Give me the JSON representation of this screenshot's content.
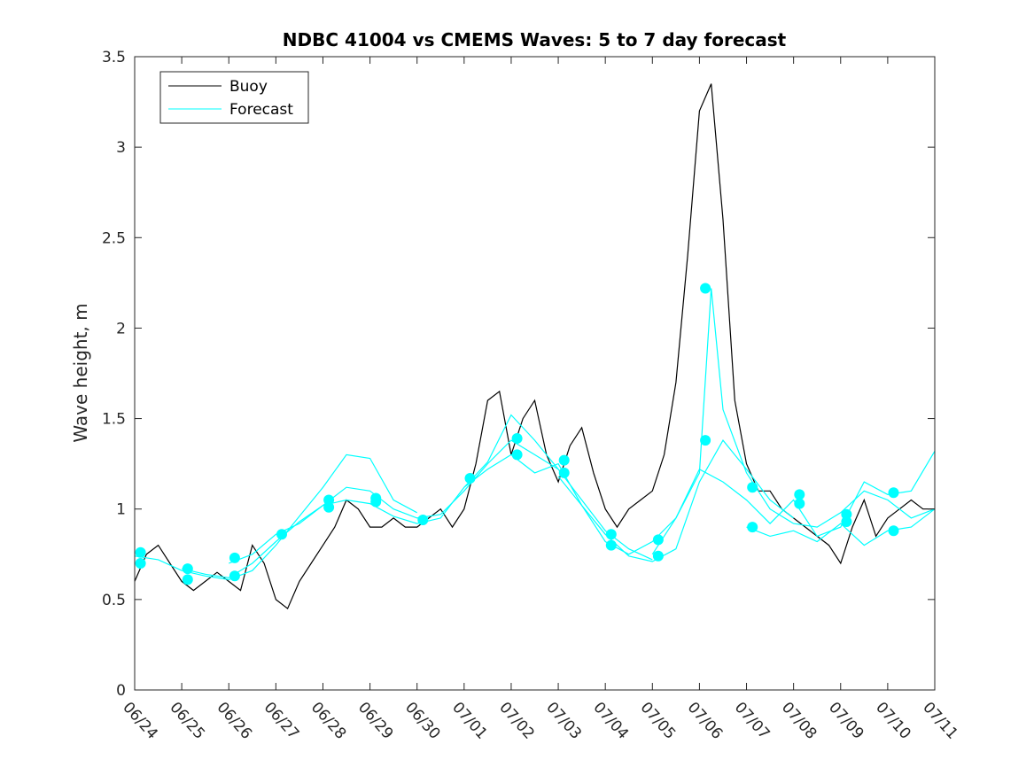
{
  "chart_data": {
    "type": "line",
    "title": "NDBC 41004 vs CMEMS Waves: 5 to 7 day forecast",
    "xlabel": "",
    "ylabel": "Wave height, m",
    "xlim": [
      "06/24",
      "07/11"
    ],
    "ylim": [
      0,
      3.5
    ],
    "x_ticks": [
      "06/24",
      "06/25",
      "06/26",
      "06/27",
      "06/28",
      "06/29",
      "06/30",
      "07/01",
      "07/02",
      "07/03",
      "07/04",
      "07/05",
      "07/06",
      "07/07",
      "07/08",
      "07/09",
      "07/10",
      "07/11"
    ],
    "y_ticks": [
      "0",
      "0.5",
      "1",
      "1.5",
      "2",
      "2.5",
      "3",
      "3.5"
    ],
    "grid": false,
    "legend_position": "top-left",
    "colors": {
      "buoy": "#000000",
      "forecast": "#00ffff"
    },
    "series": [
      {
        "name": "Buoy",
        "x": [
          "06/24 00:00",
          "06/24 06:00",
          "06/24 12:00",
          "06/24 18:00",
          "06/25 00:00",
          "06/25 06:00",
          "06/25 12:00",
          "06/25 18:00",
          "06/26 00:00",
          "06/26 06:00",
          "06/26 12:00",
          "06/26 18:00",
          "06/27 00:00",
          "06/27 06:00",
          "06/27 12:00",
          "06/27 18:00",
          "06/28 00:00",
          "06/28 06:00",
          "06/28 12:00",
          "06/28 18:00",
          "06/29 00:00",
          "06/29 06:00",
          "06/29 12:00",
          "06/29 18:00",
          "06/30 00:00",
          "06/30 06:00",
          "06/30 12:00",
          "06/30 18:00",
          "07/01 00:00",
          "07/01 06:00",
          "07/01 12:00",
          "07/01 18:00",
          "07/02 00:00",
          "07/02 06:00",
          "07/02 12:00",
          "07/02 18:00",
          "07/03 00:00",
          "07/03 06:00",
          "07/03 12:00",
          "07/03 18:00",
          "07/04 00:00",
          "07/04 06:00",
          "07/04 12:00",
          "07/04 18:00",
          "07/05 00:00",
          "07/05 06:00",
          "07/05 12:00",
          "07/05 18:00",
          "07/06 00:00",
          "07/06 06:00",
          "07/06 12:00",
          "07/06 18:00",
          "07/07 00:00",
          "07/07 06:00",
          "07/07 12:00",
          "07/07 18:00",
          "07/08 00:00",
          "07/08 06:00",
          "07/08 12:00",
          "07/08 18:00",
          "07/09 00:00",
          "07/09 06:00",
          "07/09 12:00",
          "07/09 18:00",
          "07/10 00:00",
          "07/10 06:00",
          "07/10 12:00",
          "07/10 18:00",
          "07/11 00:00"
        ],
        "y": [
          0.6,
          0.75,
          0.8,
          0.7,
          0.6,
          0.55,
          0.6,
          0.65,
          0.6,
          0.55,
          0.8,
          0.7,
          0.5,
          0.45,
          0.6,
          0.7,
          0.8,
          0.9,
          1.05,
          1.0,
          0.9,
          0.9,
          0.95,
          0.9,
          0.9,
          0.95,
          1.0,
          0.9,
          1.0,
          1.25,
          1.6,
          1.65,
          1.3,
          1.5,
          1.6,
          1.3,
          1.15,
          1.35,
          1.45,
          1.2,
          1.0,
          0.9,
          1.0,
          1.05,
          1.1,
          1.3,
          1.7,
          2.4,
          3.2,
          3.35,
          2.6,
          1.6,
          1.25,
          1.1,
          1.1,
          1.0,
          0.95,
          0.9,
          0.85,
          0.8,
          0.7,
          0.9,
          1.05,
          0.85,
          0.95,
          1.0,
          1.05,
          1.0,
          1.0
        ]
      },
      {
        "name": "Forecast",
        "x": [
          "06/24 00:00",
          "06/24 12:00",
          "06/25 00:00",
          "06/25 12:00",
          "06/26 00:00",
          "06/26 12:00",
          "06/27 00:00",
          "06/27 12:00",
          "06/28 00:00",
          "06/28 12:00",
          "06/29 00:00",
          "06/29 12:00",
          "06/30 00:00"
        ],
        "y": [
          0.74,
          0.72,
          0.66,
          0.63,
          0.61,
          0.66,
          0.8,
          0.96,
          1.12,
          1.3,
          1.28,
          1.05,
          0.98
        ]
      },
      {
        "name": "Forecast",
        "x": [
          "06/25 00:00",
          "06/25 12:00",
          "06/26 00:00",
          "06/26 12:00",
          "06/27 00:00",
          "06/27 12:00",
          "06/28 00:00",
          "06/28 12:00",
          "06/29 00:00",
          "06/29 12:00",
          "06/30 00:00",
          "06/30 12:00",
          "07/01 00:00",
          "07/01 12:00",
          "07/02 00:00",
          "07/02 12:00",
          "07/03 00:00"
        ],
        "y": [
          0.67,
          0.64,
          0.62,
          0.7,
          0.82,
          0.93,
          1.02,
          1.12,
          1.1,
          1.0,
          0.95,
          0.97,
          1.1,
          1.25,
          1.38,
          1.3,
          1.22
        ]
      },
      {
        "name": "Forecast",
        "x": [
          "06/26 00:00",
          "06/26 12:00",
          "06/27 00:00",
          "06/27 12:00",
          "06/28 00:00",
          "06/28 12:00",
          "06/29 00:00",
          "06/29 12:00",
          "06/30 00:00",
          "06/30 12:00",
          "07/01 00:00",
          "07/01 12:00",
          "07/02 00:00",
          "07/02 12:00",
          "07/03 00:00",
          "07/03 12:00",
          "07/04 00:00",
          "07/04 12:00",
          "07/05 00:00"
        ],
        "y": [
          0.7,
          0.75,
          0.86,
          0.92,
          1.02,
          1.05,
          1.03,
          0.96,
          0.92,
          0.95,
          1.12,
          1.26,
          1.52,
          1.38,
          1.22,
          1.05,
          0.88,
          0.78,
          0.72
        ]
      },
      {
        "name": "Forecast",
        "x": [
          "07/01 00:00",
          "07/01 12:00",
          "07/02 00:00",
          "07/02 12:00",
          "07/03 00:00",
          "07/03 12:00",
          "07/04 00:00",
          "07/04 12:00",
          "07/05 00:00",
          "07/05 12:00",
          "07/06 00:00",
          "07/06 12:00",
          "07/07 00:00",
          "07/07 12:00",
          "07/08 00:00"
        ],
        "y": [
          1.12,
          1.22,
          1.3,
          1.2,
          1.25,
          1.02,
          0.86,
          0.74,
          0.71,
          0.78,
          1.15,
          1.38,
          1.22,
          1.05,
          0.95
        ]
      },
      {
        "name": "Forecast",
        "x": [
          "07/03 00:00",
          "07/03 12:00",
          "07/04 00:00",
          "07/04 12:00",
          "07/05 00:00",
          "07/05 12:00",
          "07/06 00:00",
          "07/06 06:00",
          "07/06 12:00",
          "07/07 00:00",
          "07/07 12:00",
          "07/08 00:00",
          "07/08 12:00",
          "07/09 00:00",
          "07/09 12:00",
          "07/10 00:00",
          "07/10 12:00",
          "07/11 00:00"
        ],
        "y": [
          1.18,
          1.02,
          0.82,
          0.75,
          0.82,
          0.95,
          1.2,
          2.22,
          1.55,
          1.2,
          1.0,
          0.92,
          0.9,
          0.98,
          1.1,
          1.05,
          0.95,
          1.0
        ]
      },
      {
        "name": "Forecast",
        "x": [
          "07/05 00:00",
          "07/05 12:00",
          "07/06 00:00",
          "07/06 12:00",
          "07/07 00:00",
          "07/07 12:00",
          "07/08 00:00",
          "07/08 12:00",
          "07/09 00:00",
          "07/09 12:00",
          "07/10 00:00",
          "07/10 12:00",
          "07/11 00:00"
        ],
        "y": [
          0.75,
          0.95,
          1.22,
          1.15,
          1.05,
          0.92,
          1.05,
          0.85,
          0.9,
          1.15,
          1.08,
          1.1,
          1.32
        ]
      },
      {
        "name": "Forecast",
        "x": [
          "07/07 00:00",
          "07/07 12:00",
          "07/08 00:00",
          "07/08 12:00",
          "07/09 00:00",
          "07/09 12:00",
          "07/10 00:00",
          "07/10 12:00",
          "07/11 00:00"
        ],
        "y": [
          0.9,
          0.85,
          0.88,
          0.82,
          0.92,
          0.8,
          0.88,
          0.9,
          1.0
        ]
      }
    ],
    "forecast_markers": {
      "x": [
        "06/24 03:00",
        "06/24 03:00",
        "06/25 03:00",
        "06/25 03:00",
        "06/26 03:00",
        "06/26 03:00",
        "06/27 03:00",
        "06/28 03:00",
        "06/28 03:00",
        "06/29 03:00",
        "06/29 03:00",
        "06/30 03:00",
        "07/01 03:00",
        "07/02 03:00",
        "07/02 03:00",
        "07/03 03:00",
        "07/03 03:00",
        "07/04 03:00",
        "07/04 03:00",
        "07/05 03:00",
        "07/05 03:00",
        "07/06 03:00",
        "07/06 03:00",
        "07/07 03:00",
        "07/07 03:00",
        "07/08 03:00",
        "07/08 03:00",
        "07/09 03:00",
        "07/09 03:00",
        "07/10 03:00",
        "07/10 03:00"
      ],
      "y": [
        0.76,
        0.7,
        0.67,
        0.61,
        0.73,
        0.63,
        0.86,
        1.05,
        1.01,
        1.06,
        1.04,
        0.94,
        1.17,
        1.39,
        1.3,
        1.27,
        1.2,
        0.86,
        0.8,
        0.83,
        0.74,
        2.22,
        1.38,
        1.12,
        0.9,
        1.08,
        1.03,
        0.97,
        0.93,
        1.09,
        0.88
      ]
    }
  }
}
